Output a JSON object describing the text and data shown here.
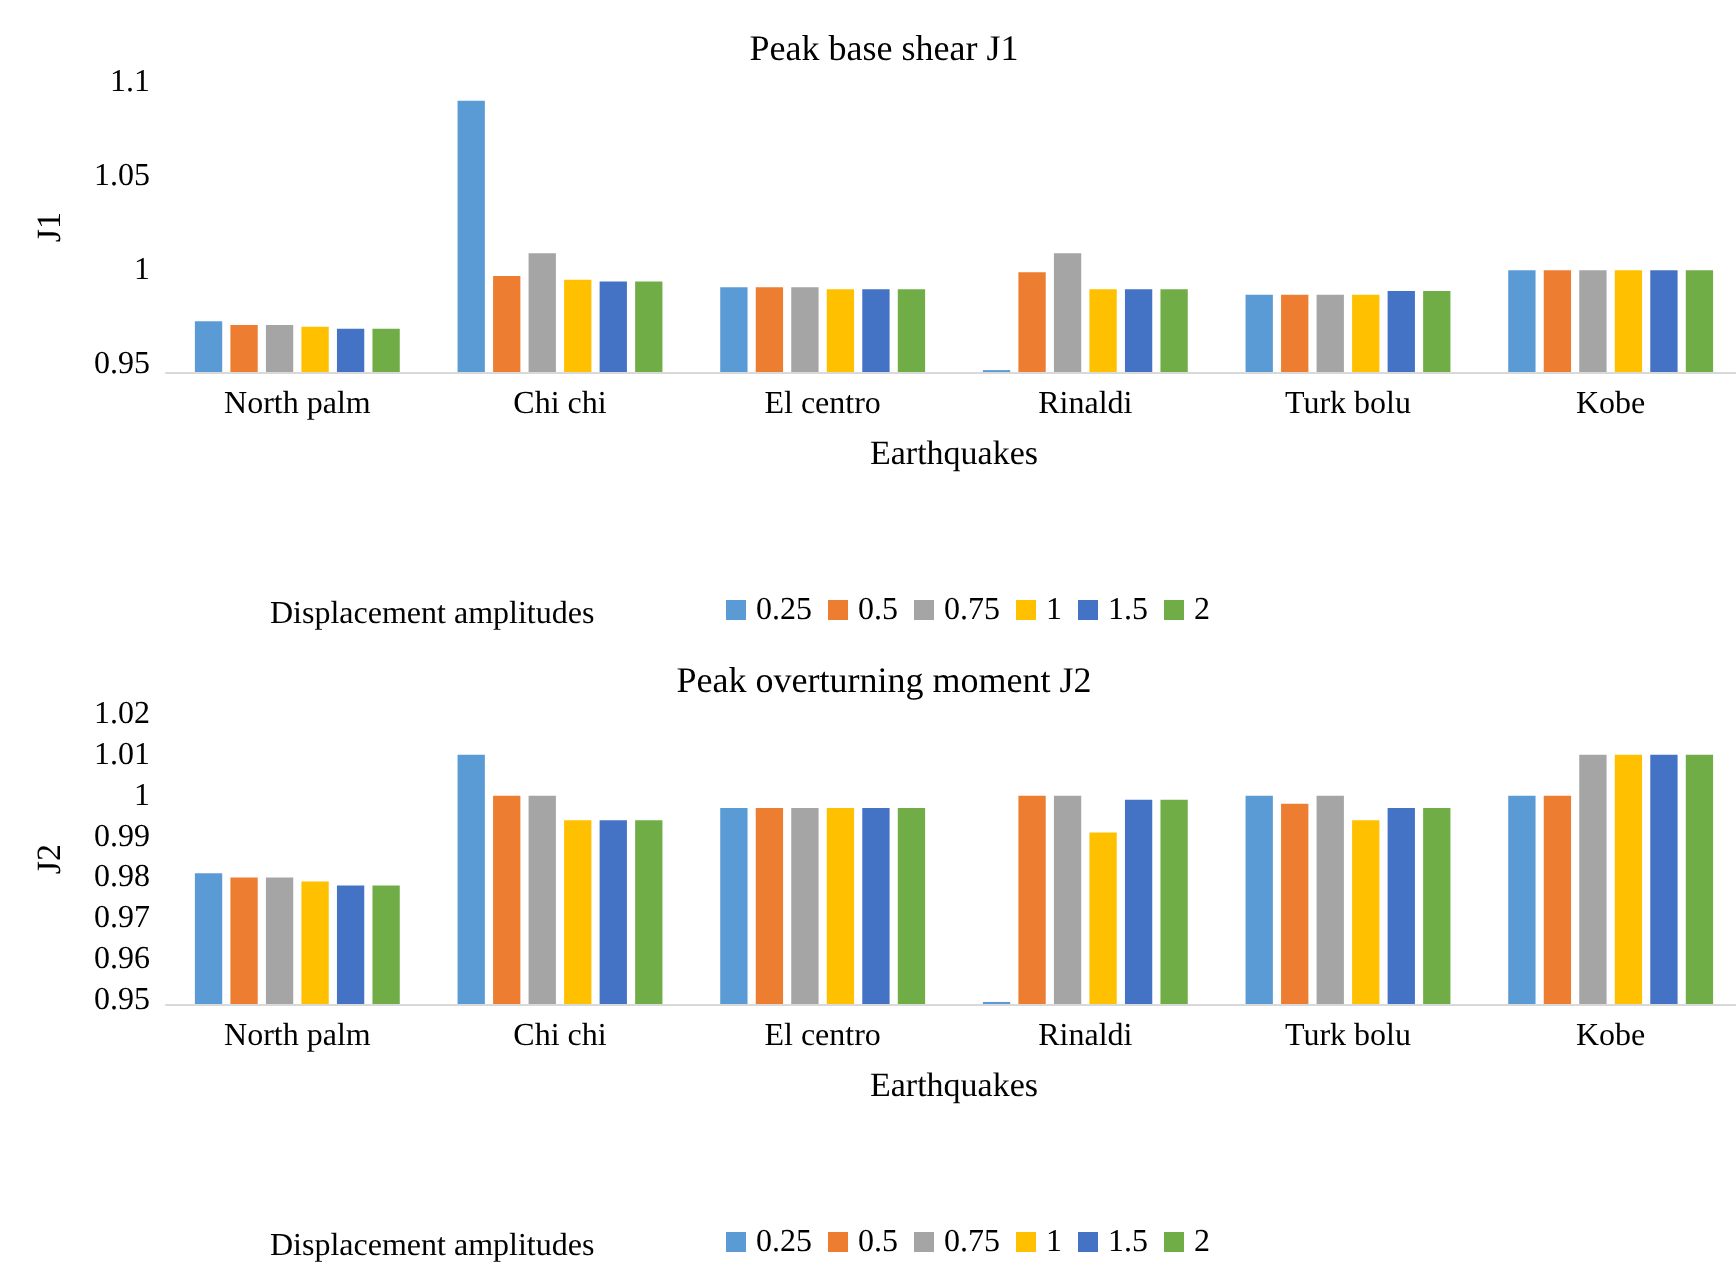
{
  "chart_data": [
    {
      "type": "bar",
      "title": "Peak base shear J1",
      "xlabel": "Earthquakes",
      "ylabel": "J1",
      "legend_title": "Displacement amplitudes",
      "legend": "bottom",
      "grid": false,
      "categories": [
        "North palm",
        "Chi chi",
        "El centro",
        "Rinaldi",
        "Turk bolu",
        "Kobe"
      ],
      "ylim": [
        0.946,
        1.1
      ],
      "yticks": [
        0.95,
        1,
        1.05,
        1.1
      ],
      "series": [
        {
          "name": "0.25",
          "color": "#5b9bd5",
          "values": [
            0.973,
            1.09,
            0.991,
            0.947,
            0.987,
            1
          ]
        },
        {
          "name": "0.5",
          "color": "#ed7d31",
          "values": [
            0.971,
            0.997,
            0.991,
            0.999,
            0.987,
            1
          ]
        },
        {
          "name": "0.75",
          "color": "#a5a5a5",
          "values": [
            0.971,
            1.009,
            0.991,
            1.009,
            0.987,
            1
          ]
        },
        {
          "name": "1",
          "color": "#ffc000",
          "values": [
            0.97,
            0.995,
            0.99,
            0.99,
            0.987,
            1
          ]
        },
        {
          "name": "1.5",
          "color": "#4472c4",
          "values": [
            0.969,
            0.994,
            0.99,
            0.99,
            0.989,
            1
          ]
        },
        {
          "name": "2",
          "color": "#70ad47",
          "values": [
            0.969,
            0.994,
            0.99,
            0.99,
            0.989,
            1
          ]
        }
      ]
    },
    {
      "type": "bar",
      "title": "Peak overturning moment J2",
      "xlabel": "Earthquakes",
      "ylabel": "J2",
      "legend_title": "Displacement amplitudes",
      "legend": "bottom",
      "grid": false,
      "categories": [
        "North palm",
        "Chi chi",
        "El centro",
        "Rinaldi",
        "Turk bolu",
        "Kobe"
      ],
      "ylim": [
        0.949,
        1.02
      ],
      "yticks": [
        0.95,
        0.96,
        0.97,
        0.98,
        0.99,
        1,
        1.01,
        1.02
      ],
      "series": [
        {
          "name": "0.25",
          "color": "#5b9bd5",
          "values": [
            0.981,
            1.01,
            0.997,
            0.9495,
            1,
            1
          ]
        },
        {
          "name": "0.5",
          "color": "#ed7d31",
          "values": [
            0.98,
            1,
            0.997,
            1,
            0.998,
            1
          ]
        },
        {
          "name": "0.75",
          "color": "#a5a5a5",
          "values": [
            0.98,
            1,
            0.997,
            1,
            1,
            1.01
          ]
        },
        {
          "name": "1",
          "color": "#ffc000",
          "values": [
            0.979,
            0.994,
            0.997,
            0.991,
            0.994,
            1.01
          ]
        },
        {
          "name": "1.5",
          "color": "#4472c4",
          "values": [
            0.978,
            0.994,
            0.997,
            0.999,
            0.997,
            1.01
          ]
        },
        {
          "name": "2",
          "color": "#70ad47",
          "values": [
            0.978,
            0.994,
            0.997,
            0.999,
            0.997,
            1.01
          ]
        }
      ]
    }
  ]
}
